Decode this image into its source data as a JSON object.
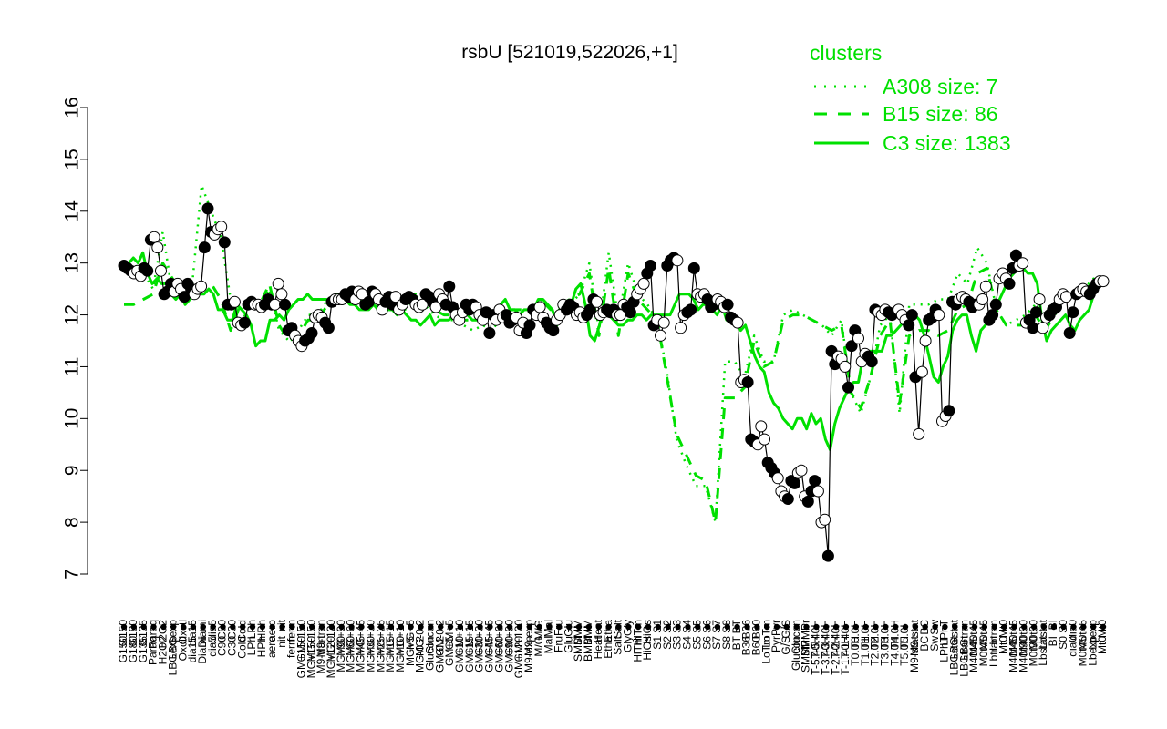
{
  "chart_data": {
    "type": "line",
    "title": "rsbU [521019,522026,+1]",
    "xlabel": "",
    "ylabel": "",
    "ylim": [
      7,
      16
    ],
    "yticks": [
      7,
      8,
      9,
      10,
      11,
      12,
      13,
      14,
      15,
      16
    ],
    "grid": false,
    "legend": {
      "title": "clusters",
      "placement": "top-right",
      "entries": [
        {
          "label": "A308 size: 7",
          "style": "dotted"
        },
        {
          "label": "B15 size: 86",
          "style": "dashed"
        },
        {
          "label": "C3 size: 1383",
          "style": "solid"
        }
      ]
    },
    "colors": {
      "cluster": "#00e000",
      "point_fill": "#000000",
      "point_open": "#ffffff"
    },
    "x_labels": [
      "G150",
      "G180",
      "G135",
      "Paraq",
      "H2O2",
      "LBGexp",
      "Oxctl",
      "dia15",
      "Diami",
      "dia5",
      "C90",
      "C30",
      "Cold",
      "LPh",
      "HPh",
      "aero",
      "nit",
      "ferm",
      "GM+150",
      "MG+150",
      "M9-tran",
      "MG+120",
      "MG+90",
      "MG+60",
      "MG+45",
      "MG+30",
      "MG+25",
      "MG+15",
      "MG+10",
      "MG+5",
      "MG-0.2",
      "Glucon",
      "GM-0.2",
      "GM+5",
      "GM+10",
      "GM+15",
      "GM+30",
      "GM+45",
      "GM+60",
      "GM+90",
      "GM+120",
      "M9-exp",
      "M/G",
      "Mal",
      "Fru",
      "Glu",
      "SMM",
      "BMM",
      "Heat",
      "Etha",
      "Salt",
      "Gly",
      "HiTm",
      "HiOs",
      "S1",
      "S2",
      "S3",
      "S4",
      "S5",
      "S6",
      "S7",
      "S8",
      "BT",
      "B36",
      "B60",
      "LoTm",
      "Pyr",
      "G/S",
      "Glucon",
      "SMMPr",
      "T-5.40H",
      "T-3.40H",
      "T-2.40H",
      "T-1.40H",
      "T0.0H",
      "T1.0H",
      "T2.0H",
      "T3.0H",
      "T4.0H",
      "T5.0H",
      "M9-stat",
      "BC",
      "Sw",
      "LPhT",
      "LBGstat",
      "LBGtran",
      "M40t45",
      "M0t45",
      "Lbtran",
      "Mt0",
      "M40t45",
      "M40t90",
      "M0t90",
      "Lbstat",
      "BI",
      "S0",
      "dia0",
      "M0t45",
      "Lbexp",
      "Mt0"
    ],
    "series": [
      {
        "style": "solid",
        "values": [
          13.0,
          13.0,
          13.1,
          13.0,
          13.2,
          12.8,
          12.6,
          12.7,
          12.6,
          12.6,
          12.4,
          12.3,
          12.4,
          12.2,
          12.3,
          12.5,
          12.4,
          12.4,
          12.5,
          12.4,
          12.1,
          12.1,
          11.9,
          11.9,
          12.2,
          12.1,
          12.0,
          11.8,
          11.4,
          11.5,
          11.5,
          11.9,
          11.9,
          12.0,
          11.9,
          12.1,
          12.2,
          12.3,
          12.3,
          12.4,
          12.3,
          12.3,
          12.3,
          12.3,
          12.2,
          12.4,
          12.4,
          12.3,
          12.2,
          12.2,
          12.1,
          12.1,
          12.1,
          12.2,
          12.1,
          12.1,
          12.1,
          12.1,
          12.0,
          12.1,
          12.0,
          11.9,
          11.9,
          11.8,
          11.9,
          12.0,
          11.8,
          11.9,
          11.9,
          11.9,
          12.0,
          12.0,
          12.0,
          12.0,
          11.9,
          11.9,
          12.0,
          11.9,
          12.0,
          12.0,
          12.2,
          12.3,
          12.1,
          12.1,
          12.0,
          12.1,
          12.1,
          12.1,
          12.3,
          12.3,
          12.2,
          12.1,
          11.8,
          12.0,
          12.1,
          12.2,
          12.5,
          12.6,
          12.2,
          11.6,
          11.5,
          11.8,
          12.2,
          12.0,
          11.9,
          11.8,
          11.8,
          11.9,
          11.9,
          12.0,
          12.0,
          11.9,
          12.0,
          12.0,
          12.0,
          12.0,
          12.0,
          12.2,
          12.4,
          12.4,
          12.4,
          12.3,
          12.1,
          12.2,
          12.2,
          12.1,
          12.0,
          12.2,
          11.9,
          11.9,
          11.9,
          11.7,
          11.8,
          11.5,
          11.2,
          11.0,
          10.9,
          10.5,
          10.3,
          10.2,
          10.0,
          9.9,
          9.8,
          10.0,
          10.0,
          9.8,
          10.1,
          9.9,
          10.0,
          9.6,
          9.4,
          9.9,
          10.2,
          10.4,
          10.6,
          10.7,
          10.7,
          11.2,
          11.3,
          11.3,
          11.3,
          11.3,
          11.6,
          11.6,
          11.7,
          11.8,
          11.9,
          12.0,
          12.0,
          11.9,
          11.6,
          11.2,
          10.8,
          10.7,
          11.0,
          11.2,
          11.7,
          11.9,
          12.0,
          12.0,
          11.6,
          11.3,
          11.7,
          11.8,
          12.0,
          12.1,
          12.3,
          12.5,
          12.7,
          12.8,
          12.9,
          12.9,
          12.8,
          12.8,
          12.6,
          11.9,
          11.5,
          11.7,
          11.8,
          11.9,
          12.0,
          11.8,
          11.7,
          11.9,
          12.0,
          12.1,
          12.4,
          12.6,
          12.7
        ]
      },
      {
        "style": "dashed",
        "values": [
          12.2,
          12.2,
          12.3,
          12.4,
          13.0,
          12.7,
          12.4,
          12.6,
          12.5,
          12.6,
          12.3,
          11.7,
          12.2,
          12.2,
          12.2,
          12.6,
          11.8,
          11.5,
          11.6,
          11.9,
          11.9,
          12.2,
          12.3,
          12.3,
          12.3,
          12.3,
          12.3,
          12.2,
          12.2,
          12.2,
          12.4,
          12.3,
          12.1,
          12.0,
          12.0,
          11.9,
          11.9,
          11.9,
          11.8,
          12.0,
          12.1,
          12.1,
          12.1,
          12.3,
          12.1,
          12.2,
          12.3,
          12.4,
          12.8,
          11.6,
          12.9,
          11.6,
          12.8,
          12.3,
          12.1,
          11.9,
          10.8,
          9.7,
          9.3,
          8.9,
          8.8,
          8.0,
          10.4,
          10.4,
          10.6,
          11.5,
          11.0,
          11.1,
          11.9,
          12.0,
          12.0,
          11.9,
          11.8,
          11.7,
          11.8,
          10.5,
          10.2,
          10.8,
          11.6,
          11.9,
          10.3,
          11.6,
          11.7,
          11.7,
          11.6,
          11.7,
          12.1,
          12.2,
          12.8,
          12.9,
          12.1,
          11.8,
          11.8,
          11.8,
          12.0,
          11.7,
          12.0,
          12.3,
          12.4,
          12.5,
          12.6,
          12.7
        ]
      },
      {
        "style": "dotted",
        "values": [
          12.9,
          12.8,
          12.8,
          12.5,
          13.6,
          12.4,
          12.3,
          12.5,
          14.5,
          14.0,
          13.5,
          12.3,
          11.8,
          12.2,
          12.2,
          12.5,
          11.7,
          11.5,
          11.7,
          12.0,
          12.0,
          12.3,
          12.4,
          12.4,
          12.3,
          12.2,
          12.2,
          12.1,
          12.1,
          12.1,
          12.4,
          12.2,
          12.0,
          11.9,
          11.9,
          11.8,
          11.7,
          11.8,
          11.7,
          12.0,
          12.0,
          12.1,
          12.1,
          12.3,
          12.1,
          12.1,
          12.2,
          12.4,
          13.0,
          11.7,
          13.2,
          11.9,
          13.0,
          12.4,
          12.2,
          11.9,
          10.9,
          9.6,
          9.1,
          8.7,
          8.7,
          8.0,
          11.1,
          11.1,
          10.8,
          11.6,
          11.1,
          11.1,
          12.0,
          12.1,
          12.0,
          11.9,
          11.8,
          11.6,
          11.9,
          10.5,
          10.1,
          10.8,
          11.8,
          12.0,
          10.1,
          12.2,
          12.2,
          12.2,
          12.3,
          12.3,
          12.8,
          12.6,
          13.3,
          13.0,
          12.1,
          11.8,
          11.9,
          12.0,
          12.2,
          11.9,
          12.1,
          12.4,
          12.4,
          12.5,
          12.7,
          12.7
        ]
      },
      {
        "style": "points",
        "values": [
          12.95,
          12.9,
          12.85,
          12.8,
          12.85,
          12.75,
          12.9,
          12.85,
          13.45,
          13.5,
          13.3,
          12.85,
          12.4,
          12.45,
          12.6,
          12.45,
          12.6,
          12.5,
          12.35,
          12.6,
          12.5,
          12.4,
          12.5,
          12.55,
          13.3,
          14.05,
          13.6,
          13.55,
          13.65,
          13.7,
          13.4,
          12.2,
          12.2,
          12.25,
          11.85,
          11.8,
          11.85,
          12.2,
          12.25,
          12.2,
          12.2,
          12.15,
          12.2,
          12.3,
          12.2,
          12.2,
          12.6,
          12.4,
          12.2,
          11.7,
          11.75,
          11.6,
          11.5,
          11.4,
          11.5,
          11.55,
          11.65,
          11.95,
          12.0,
          11.95,
          11.85,
          11.75,
          12.25,
          12.3,
          12.3,
          12.3,
          12.4,
          12.35,
          12.45,
          12.3,
          12.45,
          12.4,
          12.2,
          12.25,
          12.45,
          12.4,
          12.3,
          12.1,
          12.25,
          12.35,
          12.2,
          12.35,
          12.1,
          12.2,
          12.3,
          12.35,
          12.3,
          12.2,
          12.15,
          12.2,
          12.4,
          12.35,
          12.25,
          12.15,
          12.4,
          12.3,
          12.2,
          12.55,
          12.15,
          12.0,
          11.9,
          12.05,
          12.2,
          12.1,
          12.2,
          12.15,
          12.0,
          11.9,
          12.05,
          11.65,
          12.0,
          11.9,
          12.1,
          11.95,
          12.0,
          11.85,
          11.9,
          11.95,
          11.7,
          11.85,
          11.65,
          11.8,
          12.1,
          12.0,
          12.15,
          11.95,
          11.85,
          11.75,
          11.7,
          11.9,
          12.0,
          12.2,
          12.1,
          12.2,
          12.15,
          12.0,
          12.05,
          11.95,
          12.0,
          12.1,
          12.3,
          12.25,
          12.0,
          12.05,
          12.1,
          12.05,
          12.1,
          12.0,
          12.0,
          12.2,
          12.15,
          12.05,
          12.25,
          12.4,
          12.5,
          12.6,
          12.8,
          12.95,
          11.8,
          11.9,
          11.6,
          11.85,
          12.95,
          13.05,
          13.1,
          13.05,
          11.75,
          12.0,
          12.05,
          12.1,
          12.9,
          12.4,
          12.35,
          12.4,
          12.3,
          12.15,
          12.2,
          12.3,
          12.25,
          12.15,
          12.2,
          11.95,
          11.9,
          11.85,
          10.7,
          10.75,
          10.7,
          9.6,
          9.55,
          9.5,
          9.85,
          9.6,
          9.15,
          9.05,
          8.95,
          8.85,
          8.6,
          8.5,
          8.45,
          8.8,
          8.75,
          8.95,
          9.0,
          8.5,
          8.4,
          8.6,
          8.8,
          8.6,
          8.0,
          8.05,
          7.35,
          11.3,
          11.05,
          11.2,
          11.15,
          11.0,
          10.6,
          11.4,
          11.7,
          11.55,
          11.1,
          11.25,
          11.2,
          11.1,
          12.1,
          12.05,
          12.0,
          12.1,
          12.05,
          12.0,
          12.05,
          12.1,
          12.0,
          11.9,
          11.8,
          12.0,
          10.8,
          9.7,
          10.9,
          11.5,
          11.9,
          11.95,
          12.1,
          12.0,
          9.95,
          10.05,
          10.15,
          12.25,
          12.2,
          12.3,
          12.35,
          12.3,
          12.25,
          12.15,
          12.2,
          12.2,
          12.3,
          12.55,
          11.9,
          12.0,
          12.2,
          12.7,
          12.8,
          12.7,
          12.6,
          12.9,
          13.15,
          12.95,
          13.0,
          11.85,
          11.9,
          11.75,
          12.05,
          12.3,
          11.75,
          11.95,
          12.0,
          12.1,
          12.15,
          12.3,
          12.4,
          12.35,
          11.65,
          12.05,
          12.4,
          12.45,
          12.5,
          12.45,
          12.4,
          12.5,
          12.6,
          12.65,
          12.65
        ]
      }
    ]
  }
}
